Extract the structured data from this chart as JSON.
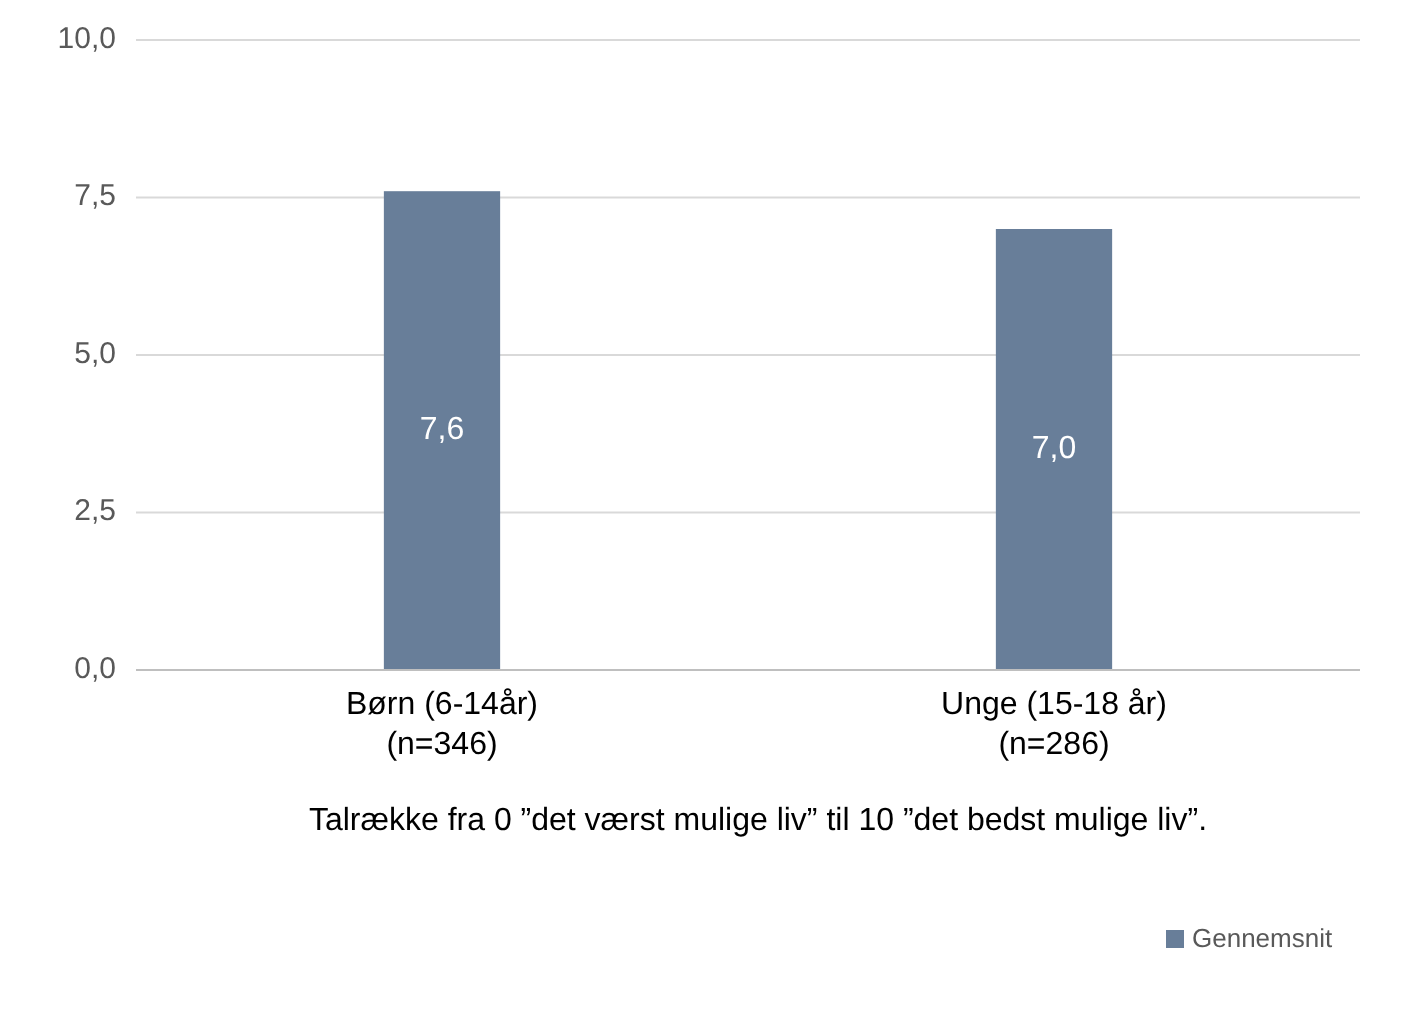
{
  "chart_data": {
    "type": "bar",
    "categories": [
      "Børn (6-14år)\n(n=346)",
      "Unge (15-18 år)\n(n=286)"
    ],
    "series": [
      {
        "name": "Gennemsnit",
        "color": "#687e99",
        "values": [
          7.6,
          7.0
        ]
      }
    ],
    "xlabel": "Talrække fra 0 ”det værst mulige liv”  til 10 ”det bedst mulige liv”.",
    "ylim": [
      0,
      10
    ],
    "yticks": [
      {
        "value": 0,
        "label": "0,0"
      },
      {
        "value": 2.5,
        "label": "2,5"
      },
      {
        "value": 5,
        "label": "5,0"
      },
      {
        "value": 7.5,
        "label": "7,5"
      },
      {
        "value": 10,
        "label": "10,0"
      }
    ],
    "value_labels": [
      "7,6",
      "7,0"
    ],
    "grid": "y",
    "legend": "bottom right"
  }
}
